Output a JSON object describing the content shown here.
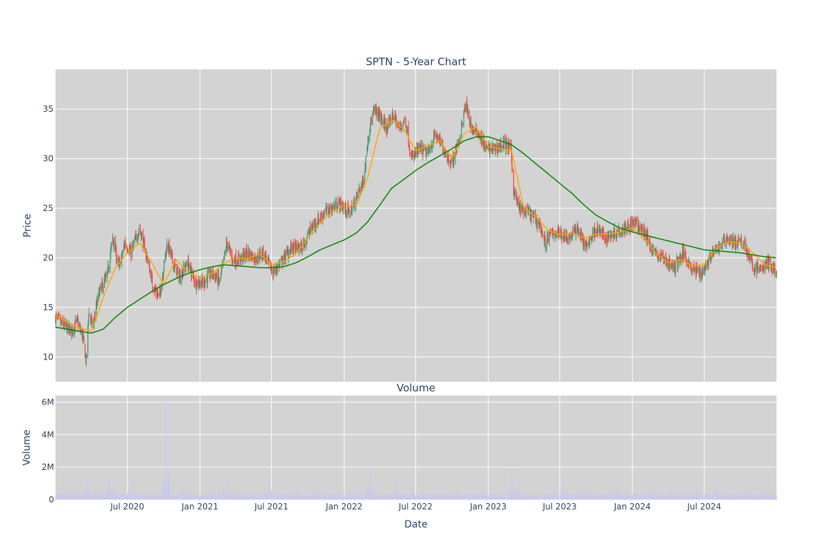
{
  "chart_data": [
    {
      "type": "candlestick",
      "title": "SPTN - 5-Year Chart",
      "xlabel": "",
      "ylabel": "Price",
      "ylim": [
        7.5,
        39
      ],
      "yticks": [
        10,
        15,
        20,
        25,
        30,
        35
      ],
      "x_range": [
        "2020-01-01",
        "2024-12-31"
      ],
      "xtick_dates": [
        "2020-07-01",
        "2021-01-01",
        "2021-07-01",
        "2022-01-01",
        "2022-07-01",
        "2023-01-01",
        "2023-07-01",
        "2024-01-01",
        "2024-07-01"
      ],
      "grid": true,
      "background": "#d3d3d3",
      "colors": {
        "up": "#3d9970",
        "down": "#ff4136",
        "short_ma": "#ffa500",
        "long_ma": "#008000"
      },
      "price_keyframes": [
        [
          "2020-01-01",
          14.0
        ],
        [
          "2020-01-20",
          13.2
        ],
        [
          "2020-02-10",
          12.6
        ],
        [
          "2020-02-25",
          13.6
        ],
        [
          "2020-03-10",
          12.0
        ],
        [
          "2020-03-19",
          9.5
        ],
        [
          "2020-03-25",
          14.5
        ],
        [
          "2020-04-05",
          13.0
        ],
        [
          "2020-04-20",
          16.5
        ],
        [
          "2020-05-10",
          18.0
        ],
        [
          "2020-05-25",
          22.0
        ],
        [
          "2020-06-10",
          19.0
        ],
        [
          "2020-06-25",
          21.5
        ],
        [
          "2020-07-10",
          20.5
        ],
        [
          "2020-08-01",
          23.0
        ],
        [
          "2020-08-20",
          20.0
        ],
        [
          "2020-09-05",
          17.0
        ],
        [
          "2020-09-20",
          16.0
        ],
        [
          "2020-10-10",
          21.5
        ],
        [
          "2020-10-25",
          19.5
        ],
        [
          "2020-11-10",
          18.0
        ],
        [
          "2020-12-01",
          19.5
        ],
        [
          "2020-12-20",
          17.5
        ],
        [
          "2021-01-10",
          17.5
        ],
        [
          "2021-02-01",
          18.5
        ],
        [
          "2021-02-20",
          17.5
        ],
        [
          "2021-03-10",
          21.5
        ],
        [
          "2021-03-25",
          19.8
        ],
        [
          "2021-04-10",
          19.8
        ],
        [
          "2021-05-01",
          20.5
        ],
        [
          "2021-05-20",
          20.0
        ],
        [
          "2021-06-10",
          20.5
        ],
        [
          "2021-07-05",
          18.5
        ],
        [
          "2021-07-25",
          19.5
        ],
        [
          "2021-08-20",
          21.0
        ],
        [
          "2021-09-15",
          21.0
        ],
        [
          "2021-10-10",
          23.0
        ],
        [
          "2021-11-10",
          24.5
        ],
        [
          "2021-12-01",
          25.0
        ],
        [
          "2021-12-20",
          25.5
        ],
        [
          "2022-01-15",
          24.5
        ],
        [
          "2022-02-01",
          26.0
        ],
        [
          "2022-02-20",
          28.0
        ],
        [
          "2022-03-05",
          33.0
        ],
        [
          "2022-03-20",
          35.0
        ],
        [
          "2022-04-05",
          34.0
        ],
        [
          "2022-04-20",
          33.0
        ],
        [
          "2022-05-05",
          34.5
        ],
        [
          "2022-05-20",
          33.0
        ],
        [
          "2022-06-05",
          34.0
        ],
        [
          "2022-06-20",
          30.0
        ],
        [
          "2022-07-10",
          31.0
        ],
        [
          "2022-08-01",
          30.5
        ],
        [
          "2022-08-20",
          32.5
        ],
        [
          "2022-09-10",
          31.0
        ],
        [
          "2022-09-30",
          29.5
        ],
        [
          "2022-10-20",
          32.0
        ],
        [
          "2022-11-05",
          35.5
        ],
        [
          "2022-11-20",
          33.0
        ],
        [
          "2022-12-10",
          32.5
        ],
        [
          "2022-12-25",
          31.0
        ],
        [
          "2023-01-20",
          31.0
        ],
        [
          "2023-02-10",
          31.5
        ],
        [
          "2023-02-28",
          31.0
        ],
        [
          "2023-03-05",
          27.0
        ],
        [
          "2023-03-20",
          25.0
        ],
        [
          "2023-04-15",
          24.5
        ],
        [
          "2023-05-10",
          23.5
        ],
        [
          "2023-05-25",
          21.5
        ],
        [
          "2023-06-10",
          22.5
        ],
        [
          "2023-07-01",
          22.5
        ],
        [
          "2023-07-25",
          22.0
        ],
        [
          "2023-08-15",
          23.0
        ],
        [
          "2023-09-05",
          21.0
        ],
        [
          "2023-10-01",
          23.0
        ],
        [
          "2023-10-25",
          22.0
        ],
        [
          "2023-11-15",
          22.5
        ],
        [
          "2023-12-10",
          23.0
        ],
        [
          "2024-01-05",
          23.5
        ],
        [
          "2024-02-01",
          22.5
        ],
        [
          "2024-02-25",
          20.5
        ],
        [
          "2024-03-20",
          20.0
        ],
        [
          "2024-04-15",
          19.0
        ],
        [
          "2024-05-10",
          20.5
        ],
        [
          "2024-06-01",
          18.8
        ],
        [
          "2024-06-25",
          18.5
        ],
        [
          "2024-07-15",
          20.0
        ],
        [
          "2024-08-05",
          21.0
        ],
        [
          "2024-08-25",
          22.0
        ],
        [
          "2024-09-15",
          21.5
        ],
        [
          "2024-10-10",
          21.5
        ],
        [
          "2024-11-01",
          19.0
        ],
        [
          "2024-11-20",
          18.8
        ],
        [
          "2024-12-10",
          19.5
        ],
        [
          "2024-12-31",
          18.5
        ]
      ],
      "short_ma_keyframes": [
        [
          "2020-01-01",
          14.2
        ],
        [
          "2020-03-01",
          12.9
        ],
        [
          "2020-04-01",
          12.6
        ],
        [
          "2020-05-01",
          16.0
        ],
        [
          "2020-06-01",
          19.0
        ],
        [
          "2020-07-01",
          20.5
        ],
        [
          "2020-08-01",
          21.5
        ],
        [
          "2020-09-01",
          19.5
        ],
        [
          "2020-10-01",
          17.3
        ],
        [
          "2020-11-01",
          19.8
        ],
        [
          "2020-12-01",
          18.6
        ],
        [
          "2021-01-01",
          18.0
        ],
        [
          "2021-02-01",
          18.4
        ],
        [
          "2021-03-01",
          19.4
        ],
        [
          "2021-04-01",
          20.0
        ],
        [
          "2021-05-01",
          19.9
        ],
        [
          "2021-06-01",
          20.4
        ],
        [
          "2021-07-01",
          19.3
        ],
        [
          "2021-08-01",
          19.6
        ],
        [
          "2021-09-01",
          20.4
        ],
        [
          "2021-10-01",
          22.0
        ],
        [
          "2021-11-01",
          23.5
        ],
        [
          "2021-12-01",
          24.6
        ],
        [
          "2022-01-01",
          25.3
        ],
        [
          "2022-02-01",
          25.3
        ],
        [
          "2022-03-01",
          28.0
        ],
        [
          "2022-04-01",
          33.0
        ],
        [
          "2022-05-01",
          33.8
        ],
        [
          "2022-06-01",
          33.0
        ],
        [
          "2022-07-01",
          30.8
        ],
        [
          "2022-08-01",
          31.3
        ],
        [
          "2022-09-01",
          31.8
        ],
        [
          "2022-10-01",
          30.0
        ],
        [
          "2022-11-01",
          32.5
        ],
        [
          "2022-12-01",
          33.2
        ],
        [
          "2023-01-01",
          31.2
        ],
        [
          "2023-02-01",
          31.0
        ],
        [
          "2023-03-01",
          30.8
        ],
        [
          "2023-04-01",
          25.0
        ],
        [
          "2023-05-01",
          24.2
        ],
        [
          "2023-06-01",
          22.8
        ],
        [
          "2023-07-01",
          22.3
        ],
        [
          "2023-08-01",
          22.5
        ],
        [
          "2023-09-01",
          22.0
        ],
        [
          "2023-10-01",
          22.4
        ],
        [
          "2023-11-01",
          22.4
        ],
        [
          "2023-12-01",
          22.6
        ],
        [
          "2024-01-01",
          23.0
        ],
        [
          "2024-02-01",
          22.0
        ],
        [
          "2024-03-01",
          20.4
        ],
        [
          "2024-04-01",
          19.5
        ],
        [
          "2024-05-01",
          19.8
        ],
        [
          "2024-06-01",
          19.2
        ],
        [
          "2024-07-01",
          19.4
        ],
        [
          "2024-08-01",
          21.0
        ],
        [
          "2024-09-01",
          21.6
        ],
        [
          "2024-10-01",
          21.5
        ],
        [
          "2024-11-01",
          20.5
        ],
        [
          "2024-12-01",
          19.3
        ],
        [
          "2024-12-31",
          19.0
        ]
      ],
      "long_ma_keyframes": [
        [
          "2020-01-01",
          13.0
        ],
        [
          "2020-03-01",
          12.6
        ],
        [
          "2020-04-01",
          12.4
        ],
        [
          "2020-05-01",
          12.8
        ],
        [
          "2020-06-01",
          14.0
        ],
        [
          "2020-07-01",
          15.0
        ],
        [
          "2020-08-01",
          15.8
        ],
        [
          "2020-09-01",
          16.6
        ],
        [
          "2020-10-01",
          17.3
        ],
        [
          "2020-11-01",
          17.9
        ],
        [
          "2020-12-01",
          18.4
        ],
        [
          "2021-01-01",
          18.8
        ],
        [
          "2021-02-01",
          19.1
        ],
        [
          "2021-03-01",
          19.3
        ],
        [
          "2021-04-01",
          19.2
        ],
        [
          "2021-05-01",
          19.1
        ],
        [
          "2021-06-01",
          19.0
        ],
        [
          "2021-07-01",
          19.0
        ],
        [
          "2021-08-01",
          19.1
        ],
        [
          "2021-09-01",
          19.5
        ],
        [
          "2021-10-01",
          20.1
        ],
        [
          "2021-11-01",
          20.8
        ],
        [
          "2021-12-01",
          21.3
        ],
        [
          "2022-01-01",
          21.8
        ],
        [
          "2022-02-01",
          22.5
        ],
        [
          "2022-03-01",
          23.6
        ],
        [
          "2022-04-01",
          25.3
        ],
        [
          "2022-05-01",
          27.0
        ],
        [
          "2022-06-01",
          27.9
        ],
        [
          "2022-07-01",
          28.8
        ],
        [
          "2022-08-01",
          29.6
        ],
        [
          "2022-09-01",
          30.3
        ],
        [
          "2022-10-01",
          31.0
        ],
        [
          "2022-11-01",
          31.8
        ],
        [
          "2022-12-01",
          32.2
        ],
        [
          "2023-01-01",
          32.2
        ],
        [
          "2023-02-01",
          31.8
        ],
        [
          "2023-03-01",
          31.4
        ],
        [
          "2023-04-01",
          30.5
        ],
        [
          "2023-05-01",
          29.5
        ],
        [
          "2023-06-01",
          28.5
        ],
        [
          "2023-07-01",
          27.5
        ],
        [
          "2023-08-01",
          26.5
        ],
        [
          "2023-09-01",
          25.3
        ],
        [
          "2023-10-01",
          24.3
        ],
        [
          "2023-11-01",
          23.6
        ],
        [
          "2023-12-01",
          23.0
        ],
        [
          "2024-01-01",
          22.6
        ],
        [
          "2024-02-01",
          22.3
        ],
        [
          "2024-03-01",
          22.0
        ],
        [
          "2024-04-01",
          21.7
        ],
        [
          "2024-05-01",
          21.4
        ],
        [
          "2024-06-01",
          21.1
        ],
        [
          "2024-07-01",
          20.8
        ],
        [
          "2024-08-01",
          20.7
        ],
        [
          "2024-09-01",
          20.6
        ],
        [
          "2024-10-01",
          20.5
        ],
        [
          "2024-11-01",
          20.3
        ],
        [
          "2024-12-01",
          20.1
        ],
        [
          "2024-12-31",
          20.0
        ]
      ]
    },
    {
      "type": "bar",
      "title": "Volume",
      "xlabel": "Date",
      "ylabel": "Volume",
      "ylim": [
        0,
        6400000
      ],
      "yticks": [
        0,
        2000000,
        4000000,
        6000000
      ],
      "ytick_labels": [
        "0",
        "2M",
        "4M",
        "6M"
      ],
      "xtick_dates": [
        "2020-07-01",
        "2021-01-01",
        "2021-07-01",
        "2022-01-01",
        "2022-07-01",
        "2023-01-01",
        "2023-07-01",
        "2024-01-01",
        "2024-07-01"
      ],
      "xtick_labels": [
        "Jul 2020",
        "Jan 2021",
        "Jul 2021",
        "Jan 2022",
        "Jul 2022",
        "Jan 2023",
        "Jul 2023",
        "Jan 2024",
        "Jul 2024"
      ],
      "bar_color": "#c8c8f0",
      "base_volume": 300000,
      "volume_spikes": [
        [
          "2020-03-01",
          700000
        ],
        [
          "2020-03-20",
          1100000
        ],
        [
          "2020-04-10",
          700000
        ],
        [
          "2020-05-15",
          1400000
        ],
        [
          "2020-05-28",
          900000
        ],
        [
          "2020-07-15",
          1300000
        ],
        [
          "2020-10-07",
          6100000
        ],
        [
          "2020-10-10",
          1800000
        ],
        [
          "2020-11-15",
          800000
        ],
        [
          "2021-03-10",
          1100000
        ],
        [
          "2021-03-20",
          700000
        ],
        [
          "2021-06-25",
          1600000
        ],
        [
          "2022-03-08",
          2300000
        ],
        [
          "2022-05-10",
          1200000
        ],
        [
          "2022-06-20",
          700000
        ],
        [
          "2022-12-20",
          600000
        ],
        [
          "2023-03-02",
          1800000
        ],
        [
          "2023-03-20",
          1400000
        ],
        [
          "2023-07-10",
          1000000
        ],
        [
          "2023-09-10",
          900000
        ],
        [
          "2023-11-20",
          600000
        ],
        [
          "2024-02-15",
          700000
        ],
        [
          "2024-03-01",
          500000
        ],
        [
          "2024-08-01",
          1000000
        ],
        [
          "2024-10-20",
          600000
        ],
        [
          "2024-12-05",
          500000
        ]
      ]
    }
  ]
}
